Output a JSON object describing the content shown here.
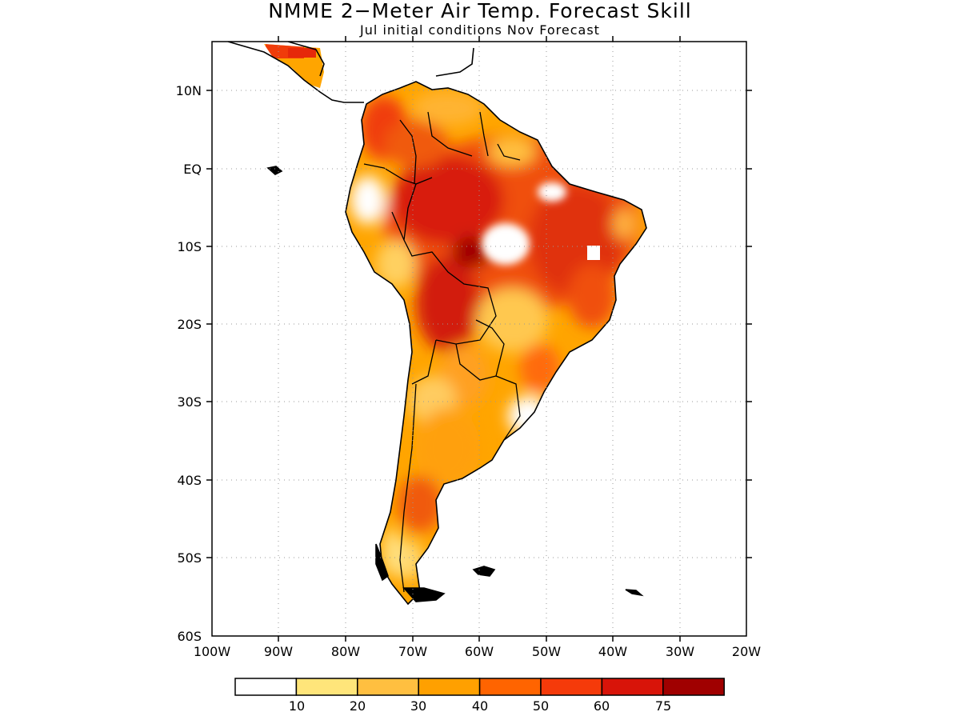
{
  "title": "NMME 2−Meter Air Temp. Forecast Skill",
  "subtitle": "Jul initial conditions   Nov Forecast",
  "map": {
    "region": "South America",
    "variable": "2-meter air temperature forecast skill",
    "lat_ticks": [
      {
        "lat": 10,
        "label": "10N"
      },
      {
        "lat": 0,
        "label": "EQ"
      },
      {
        "lat": -10,
        "label": "10S"
      },
      {
        "lat": -20,
        "label": "20S"
      },
      {
        "lat": -30,
        "label": "30S"
      },
      {
        "lat": -40,
        "label": "40S"
      },
      {
        "lat": -50,
        "label": "50S"
      },
      {
        "lat": -60,
        "label": "60S"
      }
    ],
    "lon_ticks": [
      {
        "lon": -100,
        "label": "100W"
      },
      {
        "lon": -90,
        "label": "90W"
      },
      {
        "lon": -80,
        "label": "80W"
      },
      {
        "lon": -70,
        "label": "70W"
      },
      {
        "lon": -60,
        "label": "60W"
      },
      {
        "lon": -50,
        "label": "50W"
      },
      {
        "lon": -40,
        "label": "40W"
      },
      {
        "lon": -30,
        "label": "30W"
      },
      {
        "lon": -20,
        "label": "20W"
      }
    ],
    "lat_range": [
      -60,
      16
    ],
    "lon_range": [
      -100,
      -20
    ],
    "grid": "dotted"
  },
  "colorbar": {
    "colors": [
      "#ffffff",
      "#ffe57a",
      "#ffbf40",
      "#ffa000",
      "#ff6400",
      "#f53a0a",
      "#d81409",
      "#a00000"
    ],
    "labels": [
      "10",
      "20",
      "30",
      "40",
      "50",
      "60",
      "75"
    ]
  }
}
